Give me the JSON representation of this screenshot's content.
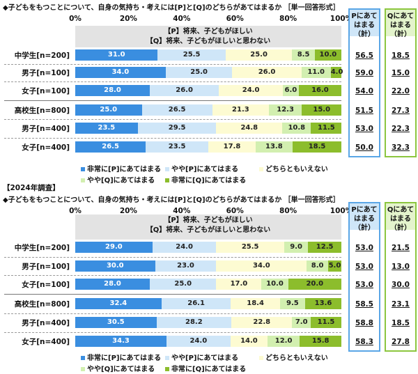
{
  "colors": [
    "#3a8ee0",
    "#cfe6f8",
    "#fdfbd2",
    "#d2efb0",
    "#8cbd2c"
  ],
  "text_colors": [
    "#ffffff",
    "#222222",
    "#222222",
    "#222222",
    "#222222"
  ],
  "chart_data": [
    {
      "type": "bar",
      "stacked": true,
      "orientation": "horizontal",
      "title": "◆子どもをもつことについて、自身の気持ち・考えには[P]と[Q]のどちらがあてはまるか ［単一回答形式］",
      "header_p": "【P】将来、子どもがほしい",
      "header_q": "【Q】将来、子どもがほしいと思わない",
      "xlim": [
        0,
        100
      ],
      "ticks": [
        "0%",
        "20%",
        "40%",
        "60%",
        "80%",
        "100%"
      ],
      "legend": [
        "非常に[P]にあてはまる",
        "やや[P]にあてはまる",
        "どちらともいえない",
        "やや[Q]にあてはまる",
        "非常に[Q]にあてはまる"
      ],
      "p_total_label": "Pにあてはまる（計）",
      "q_total_label": "Qにあてはまる（計）",
      "rows": [
        {
          "label": "中学生[n=200]",
          "values": [
            31.0,
            25.5,
            25.0,
            8.5,
            10.0
          ],
          "p_total": "56.5",
          "q_total": "18.5"
        },
        {
          "label": "男子[n=100]",
          "values": [
            34.0,
            25.0,
            26.0,
            11.0,
            4.0
          ],
          "p_total": "59.0",
          "q_total": "15.0"
        },
        {
          "label": "女子[n=100]",
          "values": [
            28.0,
            26.0,
            24.0,
            6.0,
            16.0
          ],
          "p_total": "54.0",
          "q_total": "22.0"
        },
        {
          "label": "高校生[n=800]",
          "values": [
            25.0,
            26.5,
            21.3,
            12.3,
            15.0
          ],
          "p_total": "51.5",
          "q_total": "27.3"
        },
        {
          "label": "男子[n=400]",
          "values": [
            23.5,
            29.5,
            24.8,
            10.8,
            11.5
          ],
          "p_total": "53.0",
          "q_total": "22.3"
        },
        {
          "label": "女子[n=400]",
          "values": [
            26.5,
            23.5,
            17.8,
            13.8,
            18.5
          ],
          "p_total": "50.0",
          "q_total": "32.3"
        }
      ]
    },
    {
      "type": "bar",
      "stacked": true,
      "orientation": "horizontal",
      "subtitle": "【2024年調査】",
      "title": "◆子どもをもつことについて、自身の気持ち・考えには[P]と[Q]のどちらがあてはまるか ［単一回答形式］",
      "header_p": "【P】将来、子どもがほしい",
      "header_q": "【Q】将来、子どもがほしいと思わない",
      "xlim": [
        0,
        100
      ],
      "ticks": [
        "0%",
        "20%",
        "40%",
        "60%",
        "80%",
        "100%"
      ],
      "legend": [
        "非常に[P]にあてはまる",
        "やや[P]にあてはまる",
        "どちらともいえない",
        "やや[Q]にあてはまる",
        "非常に[Q]にあてはまる"
      ],
      "p_total_label": "Pにあてはまる（計）",
      "q_total_label": "Qにあてはまる（計）",
      "rows": [
        {
          "label": "中学生[n=200]",
          "values": [
            29.0,
            24.0,
            25.5,
            9.0,
            12.5
          ],
          "p_total": "53.0",
          "q_total": "21.5"
        },
        {
          "label": "男子[n=100]",
          "values": [
            30.0,
            23.0,
            34.0,
            8.0,
            5.0
          ],
          "p_total": "53.0",
          "q_total": "13.0"
        },
        {
          "label": "女子[n=100]",
          "values": [
            28.0,
            25.0,
            17.0,
            10.0,
            20.0
          ],
          "p_total": "53.0",
          "q_total": "30.0"
        },
        {
          "label": "高校生[n=800]",
          "values": [
            32.4,
            26.1,
            18.4,
            9.5,
            13.6
          ],
          "p_total": "58.5",
          "q_total": "23.1"
        },
        {
          "label": "男子[n=400]",
          "values": [
            30.5,
            28.2,
            22.8,
            7.0,
            11.5
          ],
          "p_total": "58.8",
          "q_total": "18.5"
        },
        {
          "label": "女子[n=400]",
          "values": [
            34.3,
            24.0,
            14.0,
            12.0,
            15.8
          ],
          "p_total": "58.3",
          "q_total": "27.8"
        }
      ]
    }
  ]
}
